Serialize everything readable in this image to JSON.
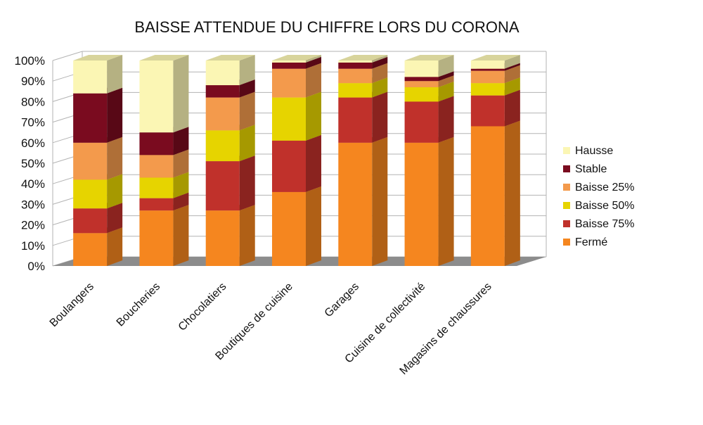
{
  "chart_data": {
    "type": "bar",
    "stacked": true,
    "style": "3d",
    "title": "BAISSE ATTENDUE DU CHIFFRE LORS DU CORONA",
    "categories": [
      "Boulangers",
      "Boucheries",
      "Chocolatiers",
      "Boutiques de cuisine",
      "Garages",
      "Cuisine de collectivité",
      "Magasins de chaussures"
    ],
    "series": [
      {
        "name": "Fermé",
        "color": "#f5861f",
        "values": [
          16,
          27,
          27,
          36,
          60,
          60,
          68
        ]
      },
      {
        "name": "Baisse 75%",
        "color": "#c0312b",
        "values": [
          12,
          6,
          24,
          25,
          22,
          20,
          15
        ]
      },
      {
        "name": "Baisse 50%",
        "color": "#e6d400",
        "values": [
          14,
          10,
          15,
          21,
          7,
          7,
          6
        ]
      },
      {
        "name": "Baisse 25%",
        "color": "#f39a4c",
        "values": [
          18,
          11,
          16,
          14,
          7,
          3,
          6
        ]
      },
      {
        "name": "Stable",
        "color": "#7a0b1f",
        "values": [
          24,
          11,
          6,
          3,
          3,
          2,
          1
        ]
      },
      {
        "name": "Hausse",
        "color": "#fbf6b4",
        "values": [
          16,
          35,
          12,
          1,
          1,
          8,
          4
        ]
      }
    ],
    "yticks": [
      "0%",
      "10%",
      "20%",
      "30%",
      "40%",
      "50%",
      "60%",
      "70%",
      "80%",
      "90%",
      "100%"
    ],
    "ylim": [
      0,
      100
    ],
    "grid": true,
    "legend_position": "right",
    "legend_order": [
      "Hausse",
      "Stable",
      "Baisse 25%",
      "Baisse 50%",
      "Baisse 75%",
      "Fermé"
    ]
  }
}
